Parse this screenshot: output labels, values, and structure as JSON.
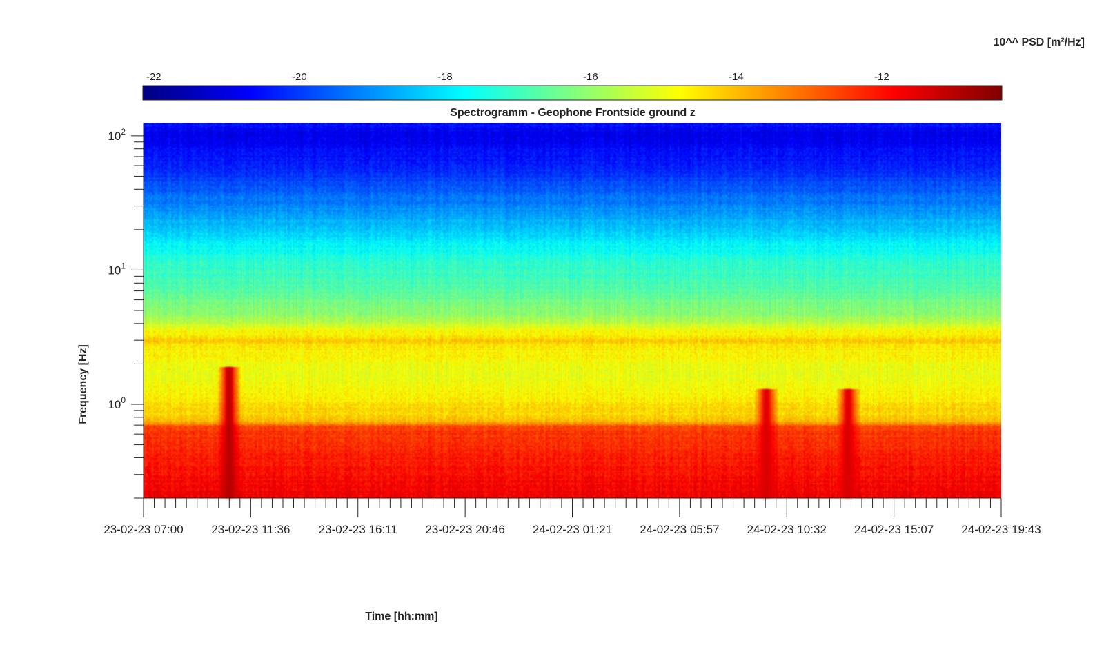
{
  "chart_data": {
    "type": "heatmap",
    "title": "Spectrogramm - Geophone Frontside ground z",
    "xlabel": "Time [hh:mm]",
    "ylabel": "Frequency [Hz]",
    "colorbar_label": "10^^ PSD [m²/Hz]",
    "colormap": "jet",
    "colorbar_ticks": [
      "-22",
      "-20",
      "-18",
      "-16",
      "-14",
      "-12"
    ],
    "colorbar_range": [
      -22.15,
      -10.35
    ],
    "y_scale": "log",
    "ylim": [
      0.2,
      125
    ],
    "y_major_ticks": [
      {
        "value": 1,
        "base": "10",
        "exp": "0"
      },
      {
        "value": 10,
        "base": "10",
        "exp": "1"
      },
      {
        "value": 100,
        "base": "10",
        "exp": "2"
      }
    ],
    "x_tick_labels": [
      "23-02-23 07:00",
      "23-02-23 11:36",
      "23-02-23 16:11",
      "23-02-23 20:46",
      "24-02-23 01:21",
      "24-02-23 05:57",
      "24-02-23 10:32",
      "24-02-23 15:07",
      "24-02-23 19:43"
    ],
    "x_range": [
      "23-02-23 07:00",
      "24-02-23 19:43"
    ],
    "frequency_profile_log10_psd": [
      {
        "f": 0.2,
        "psd": -11.7
      },
      {
        "f": 0.3,
        "psd": -12.0
      },
      {
        "f": 0.5,
        "psd": -12.3
      },
      {
        "f": 0.68,
        "psd": -12.6
      },
      {
        "f": 0.75,
        "psd": -14.2
      },
      {
        "f": 1.0,
        "psd": -14.5
      },
      {
        "f": 1.5,
        "psd": -15.0
      },
      {
        "f": 2.5,
        "psd": -14.7
      },
      {
        "f": 3.0,
        "psd": -14.2
      },
      {
        "f": 4.5,
        "psd": -15.9
      },
      {
        "f": 7.0,
        "psd": -16.7
      },
      {
        "f": 12.0,
        "psd": -17.3
      },
      {
        "f": 20.0,
        "psd": -18.3
      },
      {
        "f": 35.0,
        "psd": -19.4
      },
      {
        "f": 60.0,
        "psd": -20.3
      },
      {
        "f": 100.0,
        "psd": -20.9
      },
      {
        "f": 125.0,
        "psd": -20.5
      }
    ],
    "events": [
      {
        "time": "23-02-23 10:40",
        "f_min": 0.2,
        "f_max": 1.9,
        "psd": -11.0
      },
      {
        "time": "24-02-23 09:40",
        "f_min": 0.2,
        "f_max": 1.3,
        "psd": -11.4
      },
      {
        "time": "24-02-23 13:10",
        "f_min": 0.2,
        "f_max": 1.3,
        "psd": -11.4
      }
    ]
  }
}
